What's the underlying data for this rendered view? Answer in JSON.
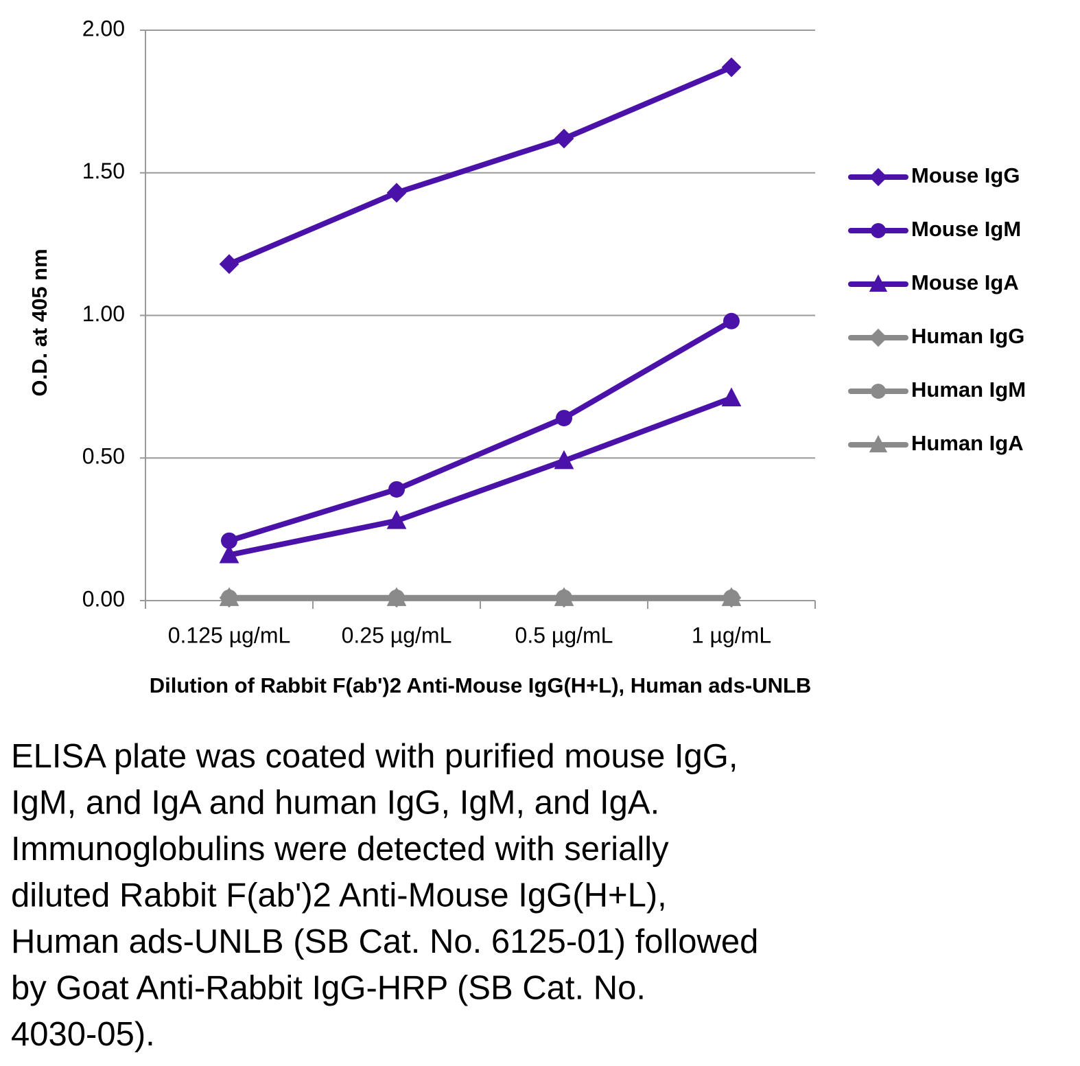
{
  "chart_data": {
    "type": "line",
    "y_label": "O.D. at 405 nm",
    "x_label": "Dilution of Rabbit F(ab')2 Anti-Mouse IgG(H+L), Human ads-UNLB",
    "categories": [
      "0.125 µg/mL",
      "0.25 µg/mL",
      "0.5 µg/mL",
      "1 µg/mL"
    ],
    "series": [
      {
        "name": "Mouse IgG",
        "color": "#4a12a8",
        "marker": "diamond",
        "values": [
          1.18,
          1.43,
          1.62,
          1.87
        ]
      },
      {
        "name": "Mouse IgM",
        "color": "#4a12a8",
        "marker": "circle",
        "values": [
          0.21,
          0.39,
          0.64,
          0.98
        ]
      },
      {
        "name": "Mouse IgA",
        "color": "#4a12a8",
        "marker": "triangle",
        "values": [
          0.16,
          0.28,
          0.49,
          0.71
        ]
      },
      {
        "name": "Human IgG",
        "color": "#8a8a8a",
        "marker": "diamond",
        "values": [
          0.01,
          0.01,
          0.01,
          0.01
        ]
      },
      {
        "name": "Human IgM",
        "color": "#8a8a8a",
        "marker": "circle",
        "values": [
          0.01,
          0.01,
          0.01,
          0.01
        ]
      },
      {
        "name": "Human IgA",
        "color": "#8a8a8a",
        "marker": "triangle",
        "values": [
          0.01,
          0.01,
          0.01,
          0.01
        ]
      }
    ],
    "ylim": [
      0,
      2
    ],
    "yticks": [
      {
        "value": 0,
        "label": "0.00"
      },
      {
        "value": 0.5,
        "label": "0.50"
      },
      {
        "value": 1,
        "label": "1.00"
      },
      {
        "value": 1.5,
        "label": "1.50"
      },
      {
        "value": 2,
        "label": "2.00"
      }
    ],
    "grid": true,
    "legend": "right"
  },
  "caption": [
    "ELISA plate was coated with purified mouse IgG,",
    "IgM, and IgA and human IgG, IgM, and IgA.",
    "Immunoglobulins were detected with serially",
    "diluted Rabbit F(ab')2 Anti-Mouse IgG(H+L),",
    "Human ads-UNLB (SB Cat. No. 6125-01) followed",
    "by Goat Anti-Rabbit IgG-HRP (SB Cat. No.",
    "4030-05)."
  ]
}
